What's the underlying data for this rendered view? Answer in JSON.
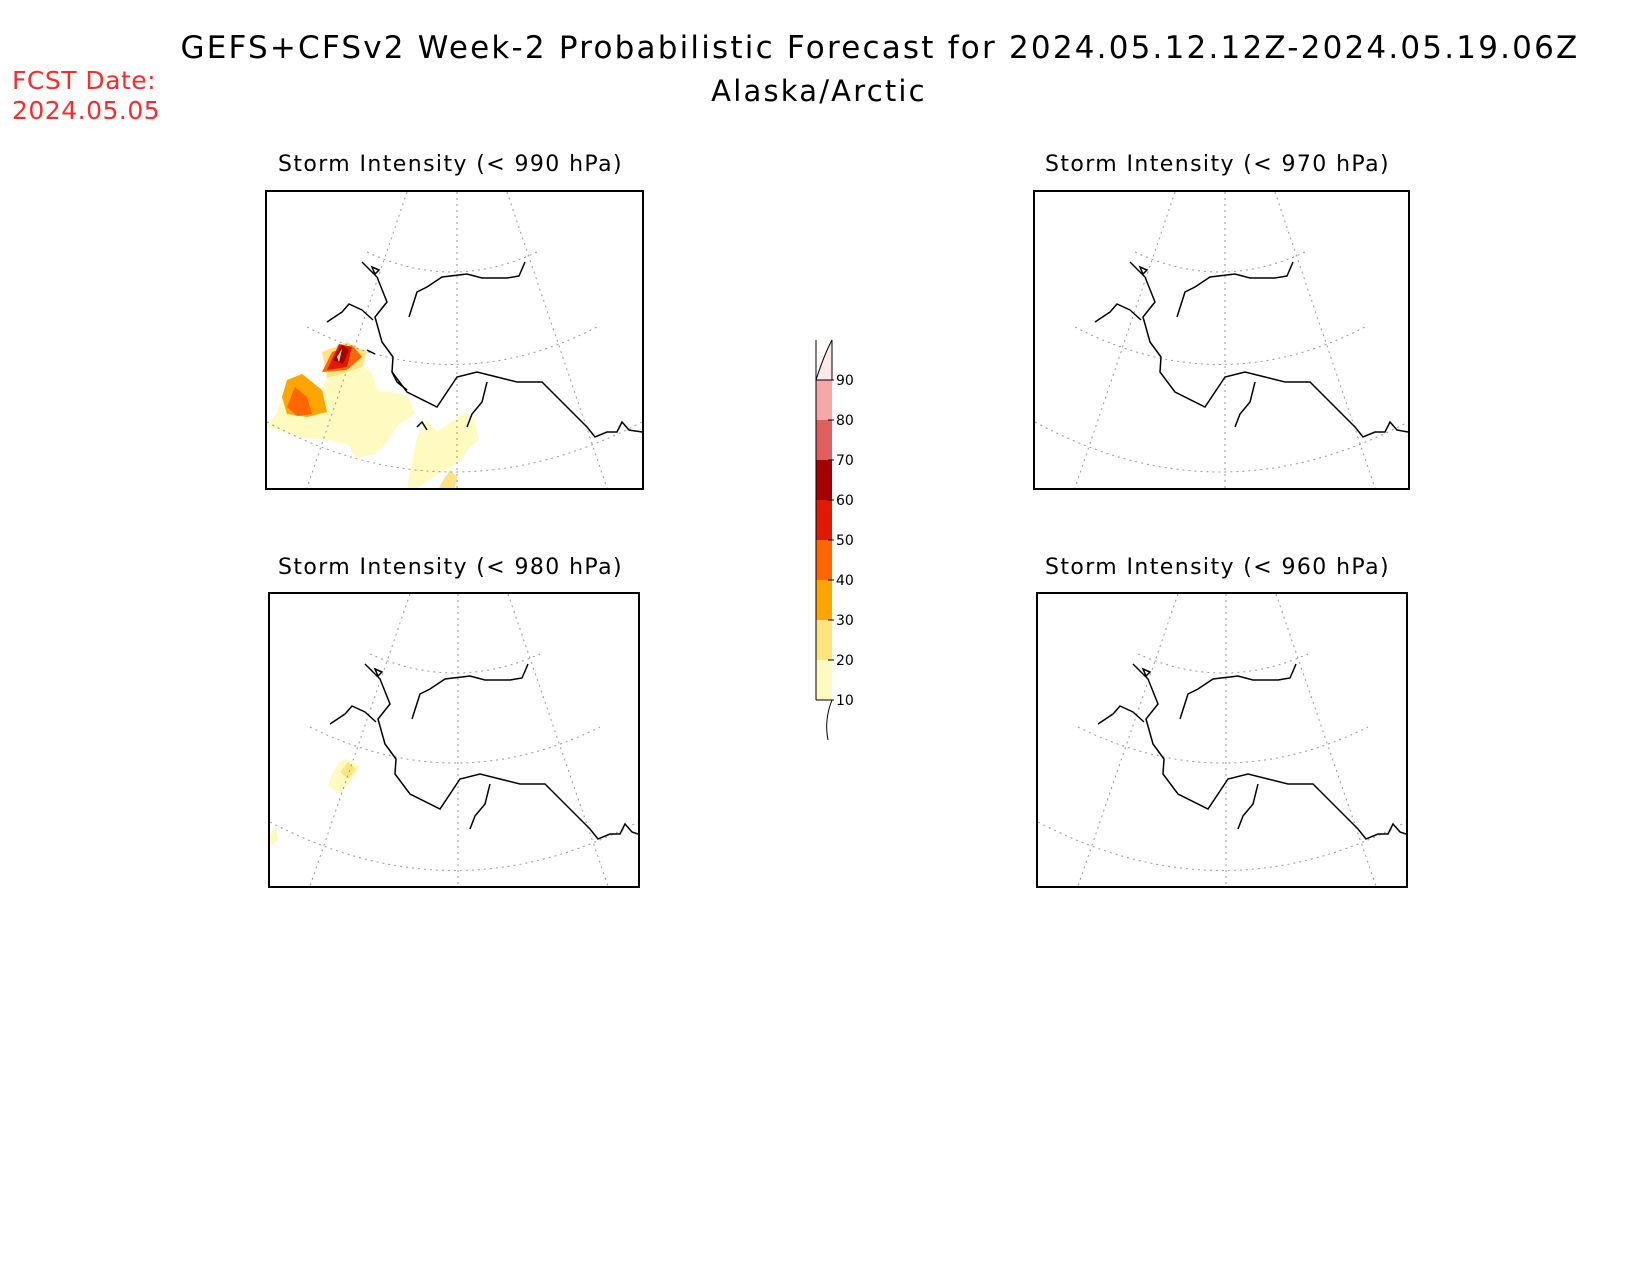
{
  "header": {
    "title": "GEFS+CFSv2 Week-2 Probabilistic Forecast for 2024.05.12.12Z-2024.05.19.06Z",
    "subtitle": "Alaska/Arctic",
    "fcst_label": "FCST Date:",
    "fcst_value": "2024.05.05"
  },
  "panels": [
    {
      "title": "Storm Intensity (< 990 hPa)",
      "threshold_hpa": 990
    },
    {
      "title": "Storm Intensity (< 970 hPa)",
      "threshold_hpa": 970
    },
    {
      "title": "Storm Intensity (< 980 hPa)",
      "threshold_hpa": 980
    },
    {
      "title": "Storm Intensity (< 960 hPa)",
      "threshold_hpa": 960
    }
  ],
  "colorbar": {
    "levels": [
      "10",
      "20",
      "30",
      "40",
      "50",
      "60",
      "70",
      "80",
      "90"
    ],
    "colors": [
      "#fffac0",
      "#fde480",
      "#ffa500",
      "#ff6600",
      "#e01a00",
      "#a50000",
      "#e06060",
      "#f4a8a8",
      "#ffe8ea"
    ]
  }
}
